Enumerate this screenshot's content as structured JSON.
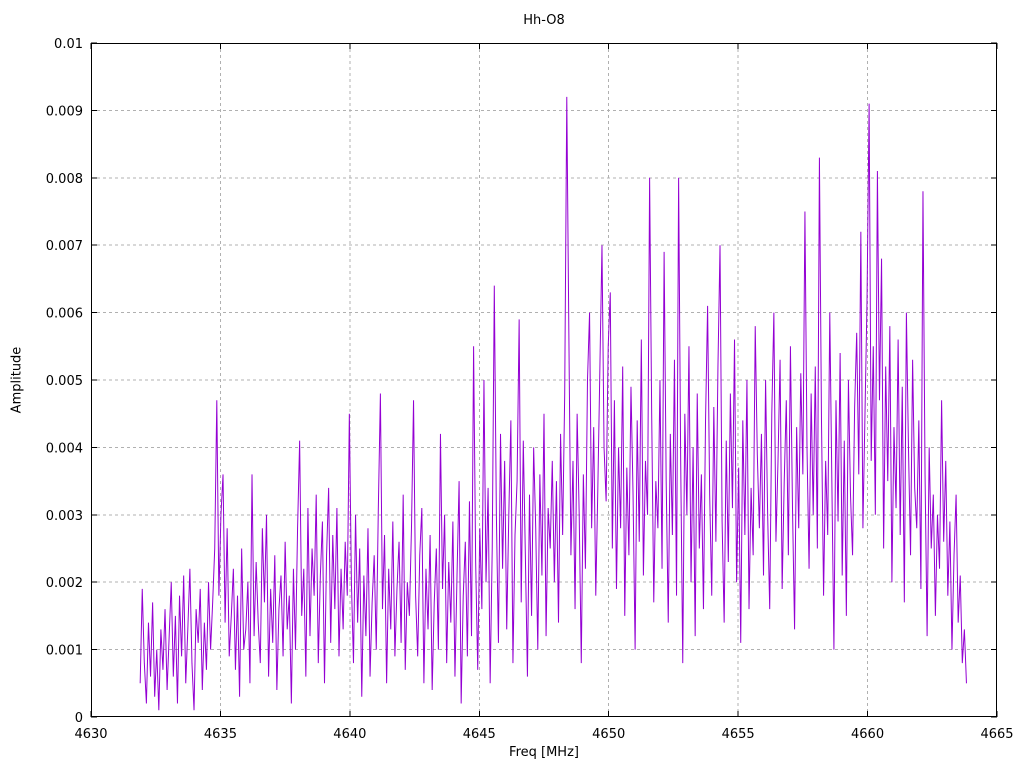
{
  "page": {
    "background": "#ffffff"
  },
  "chart": {
    "title": "Hh-O8",
    "xlabel": "Freq [MHz]",
    "ylabel": "Amplitude"
  },
  "chart_data": {
    "type": "line",
    "title": "Hh-O8",
    "xlabel": "Freq [MHz]",
    "ylabel": "Amplitude",
    "xlim": [
      4630,
      4665
    ],
    "ylim": [
      0,
      0.01
    ],
    "grid": true,
    "grid_style": "dashed",
    "legend": "none",
    "line_color": "#9400D3",
    "grid_color": "#b0b0b0",
    "border_color": "#000000",
    "text_color": "#000000",
    "xticks": [
      {
        "value": 4630,
        "label": "4630"
      },
      {
        "value": 4635,
        "label": "4635"
      },
      {
        "value": 4640,
        "label": "4640"
      },
      {
        "value": 4645,
        "label": "4645"
      },
      {
        "value": 4650,
        "label": "4650"
      },
      {
        "value": 4655,
        "label": "4655"
      },
      {
        "value": 4660,
        "label": "4660"
      },
      {
        "value": 4665,
        "label": "4665"
      }
    ],
    "yticks": [
      {
        "value": 0,
        "label": "0"
      },
      {
        "value": 0.001,
        "label": "0.001"
      },
      {
        "value": 0.002,
        "label": "0.002"
      },
      {
        "value": 0.003,
        "label": "0.003"
      },
      {
        "value": 0.004,
        "label": "0.004"
      },
      {
        "value": 0.005,
        "label": "0.005"
      },
      {
        "value": 0.006,
        "label": "0.006"
      },
      {
        "value": 0.007,
        "label": "0.007"
      },
      {
        "value": 0.008,
        "label": "0.008"
      },
      {
        "value": 0.009,
        "label": "0.009"
      },
      {
        "value": 0.01,
        "label": "0.01"
      }
    ],
    "freq_start": 4631.9,
    "freq_step": 0.08,
    "amplitude_scale": 0.0001,
    "amplitudes_1e4": [
      5,
      19,
      8,
      2,
      14,
      6,
      17,
      3,
      10,
      1,
      13,
      7,
      16,
      4,
      12,
      20,
      6,
      15,
      2,
      18,
      9,
      21,
      5,
      13,
      22,
      8,
      1,
      16,
      11,
      19,
      4,
      14,
      7,
      20,
      10,
      17,
      25,
      47,
      18,
      30,
      36,
      14,
      28,
      9,
      15,
      22,
      7,
      18,
      3,
      25,
      10,
      13,
      20,
      5,
      36,
      12,
      23,
      14,
      8,
      28,
      17,
      30,
      6,
      19,
      11,
      24,
      4,
      16,
      21,
      9,
      26,
      13,
      18,
      2,
      22,
      10,
      28,
      41,
      15,
      22,
      6,
      31,
      12,
      25,
      18,
      33,
      8,
      21,
      29,
      5,
      24,
      34,
      11,
      27,
      16,
      31,
      9,
      22,
      13,
      26,
      18,
      45,
      20,
      8,
      30,
      14,
      25,
      3,
      21,
      12,
      28,
      6,
      17,
      24,
      10,
      31,
      48,
      16,
      27,
      5,
      22,
      13,
      29,
      9,
      19,
      26,
      11,
      33,
      7,
      20,
      15,
      28,
      47,
      18,
      9,
      24,
      31,
      5,
      22,
      13,
      27,
      4,
      17,
      25,
      10,
      42,
      19,
      30,
      8,
      23,
      14,
      29,
      6,
      21,
      35,
      2,
      18,
      26,
      9,
      32,
      12,
      55,
      23,
      7,
      28,
      16,
      50,
      20,
      34,
      5,
      25,
      64,
      30,
      11,
      42,
      22,
      38,
      13,
      30,
      44,
      8,
      27,
      35,
      59,
      17,
      41,
      24,
      6,
      33,
      15,
      40,
      28,
      10,
      36,
      21,
      45,
      12,
      31,
      25,
      38,
      20,
      35,
      14,
      42,
      27,
      48,
      92,
      57,
      24,
      38,
      16,
      45,
      30,
      8,
      36,
      22,
      50,
      60,
      28,
      43,
      18,
      34,
      52,
      70,
      40,
      32,
      55,
      63,
      25,
      47,
      19,
      40,
      28,
      52,
      15,
      37,
      24,
      49,
      33,
      10,
      44,
      26,
      56,
      21,
      38,
      30,
      80,
      45,
      17,
      35,
      28,
      50,
      22,
      69,
      35,
      14,
      42,
      27,
      53,
      18,
      80,
      38,
      8,
      45,
      30,
      55,
      20,
      40,
      12,
      48,
      25,
      36,
      16,
      44,
      61,
      33,
      18,
      46,
      26,
      52,
      70,
      29,
      14,
      41,
      23,
      48,
      31,
      56,
      20,
      37,
      11,
      44,
      27,
      50,
      16,
      34,
      24,
      58,
      39,
      28,
      42,
      21,
      50,
      30,
      16,
      45,
      60,
      26,
      38,
      53,
      19,
      35,
      47,
      24,
      55,
      31,
      13,
      43,
      28,
      51,
      36,
      75,
      40,
      22,
      48,
      30,
      52,
      25,
      83,
      44,
      18,
      38,
      27,
      60,
      35,
      10,
      47,
      29,
      54,
      21,
      41,
      15,
      50,
      33,
      24,
      46,
      57,
      36,
      72,
      28,
      45,
      62,
      91,
      38,
      55,
      30,
      81,
      47,
      68,
      25,
      52,
      35,
      58,
      20,
      43,
      31,
      56,
      27,
      49,
      17,
      60,
      40,
      24,
      53,
      34,
      28,
      44,
      19,
      78,
      36,
      12,
      40,
      25,
      33,
      15,
      30,
      22,
      47,
      26,
      38,
      18,
      29,
      10,
      24,
      33,
      14,
      21,
      8,
      13,
      5
    ]
  }
}
